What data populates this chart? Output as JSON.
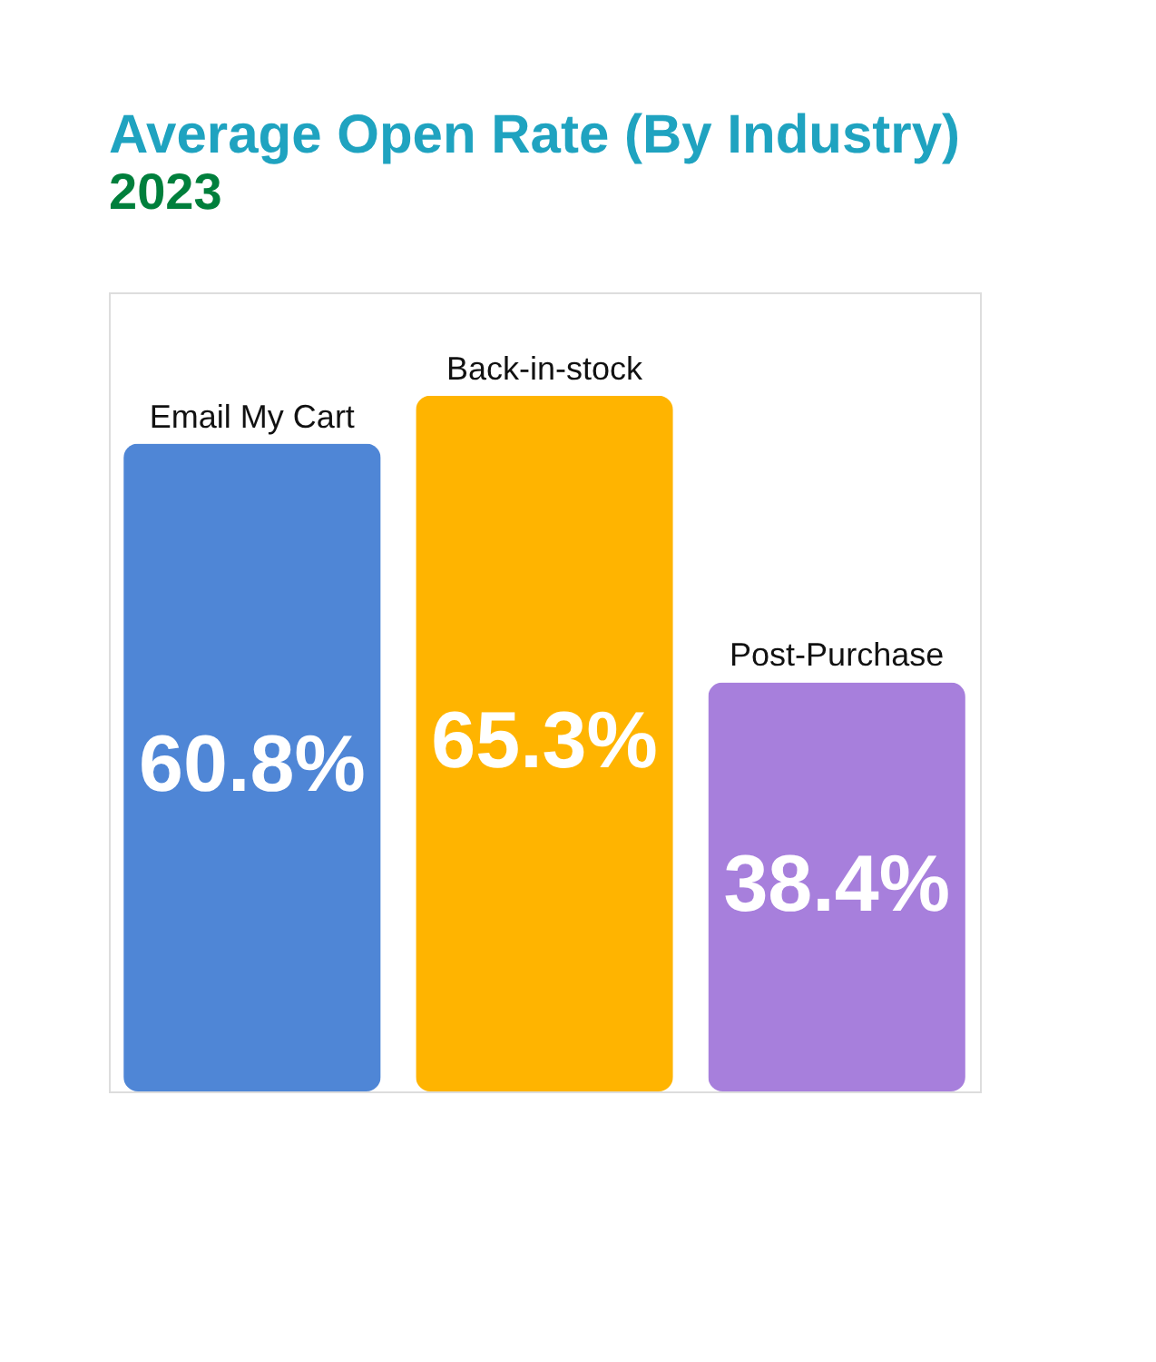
{
  "chart_data": {
    "type": "bar",
    "title": "Average Open Rate (By Industry)",
    "subtitle": "2023",
    "categories": [
      "Email My Cart",
      "Back-in-stock",
      "Post-Purchase"
    ],
    "values": [
      60.8,
      65.3,
      38.4
    ],
    "value_labels": [
      "60.8%",
      "65.3%",
      "38.4%"
    ],
    "colors": [
      "#4f86d6",
      "#ffb400",
      "#a77fdc"
    ],
    "ylim": [
      0,
      75
    ],
    "tick_labels": false
  }
}
